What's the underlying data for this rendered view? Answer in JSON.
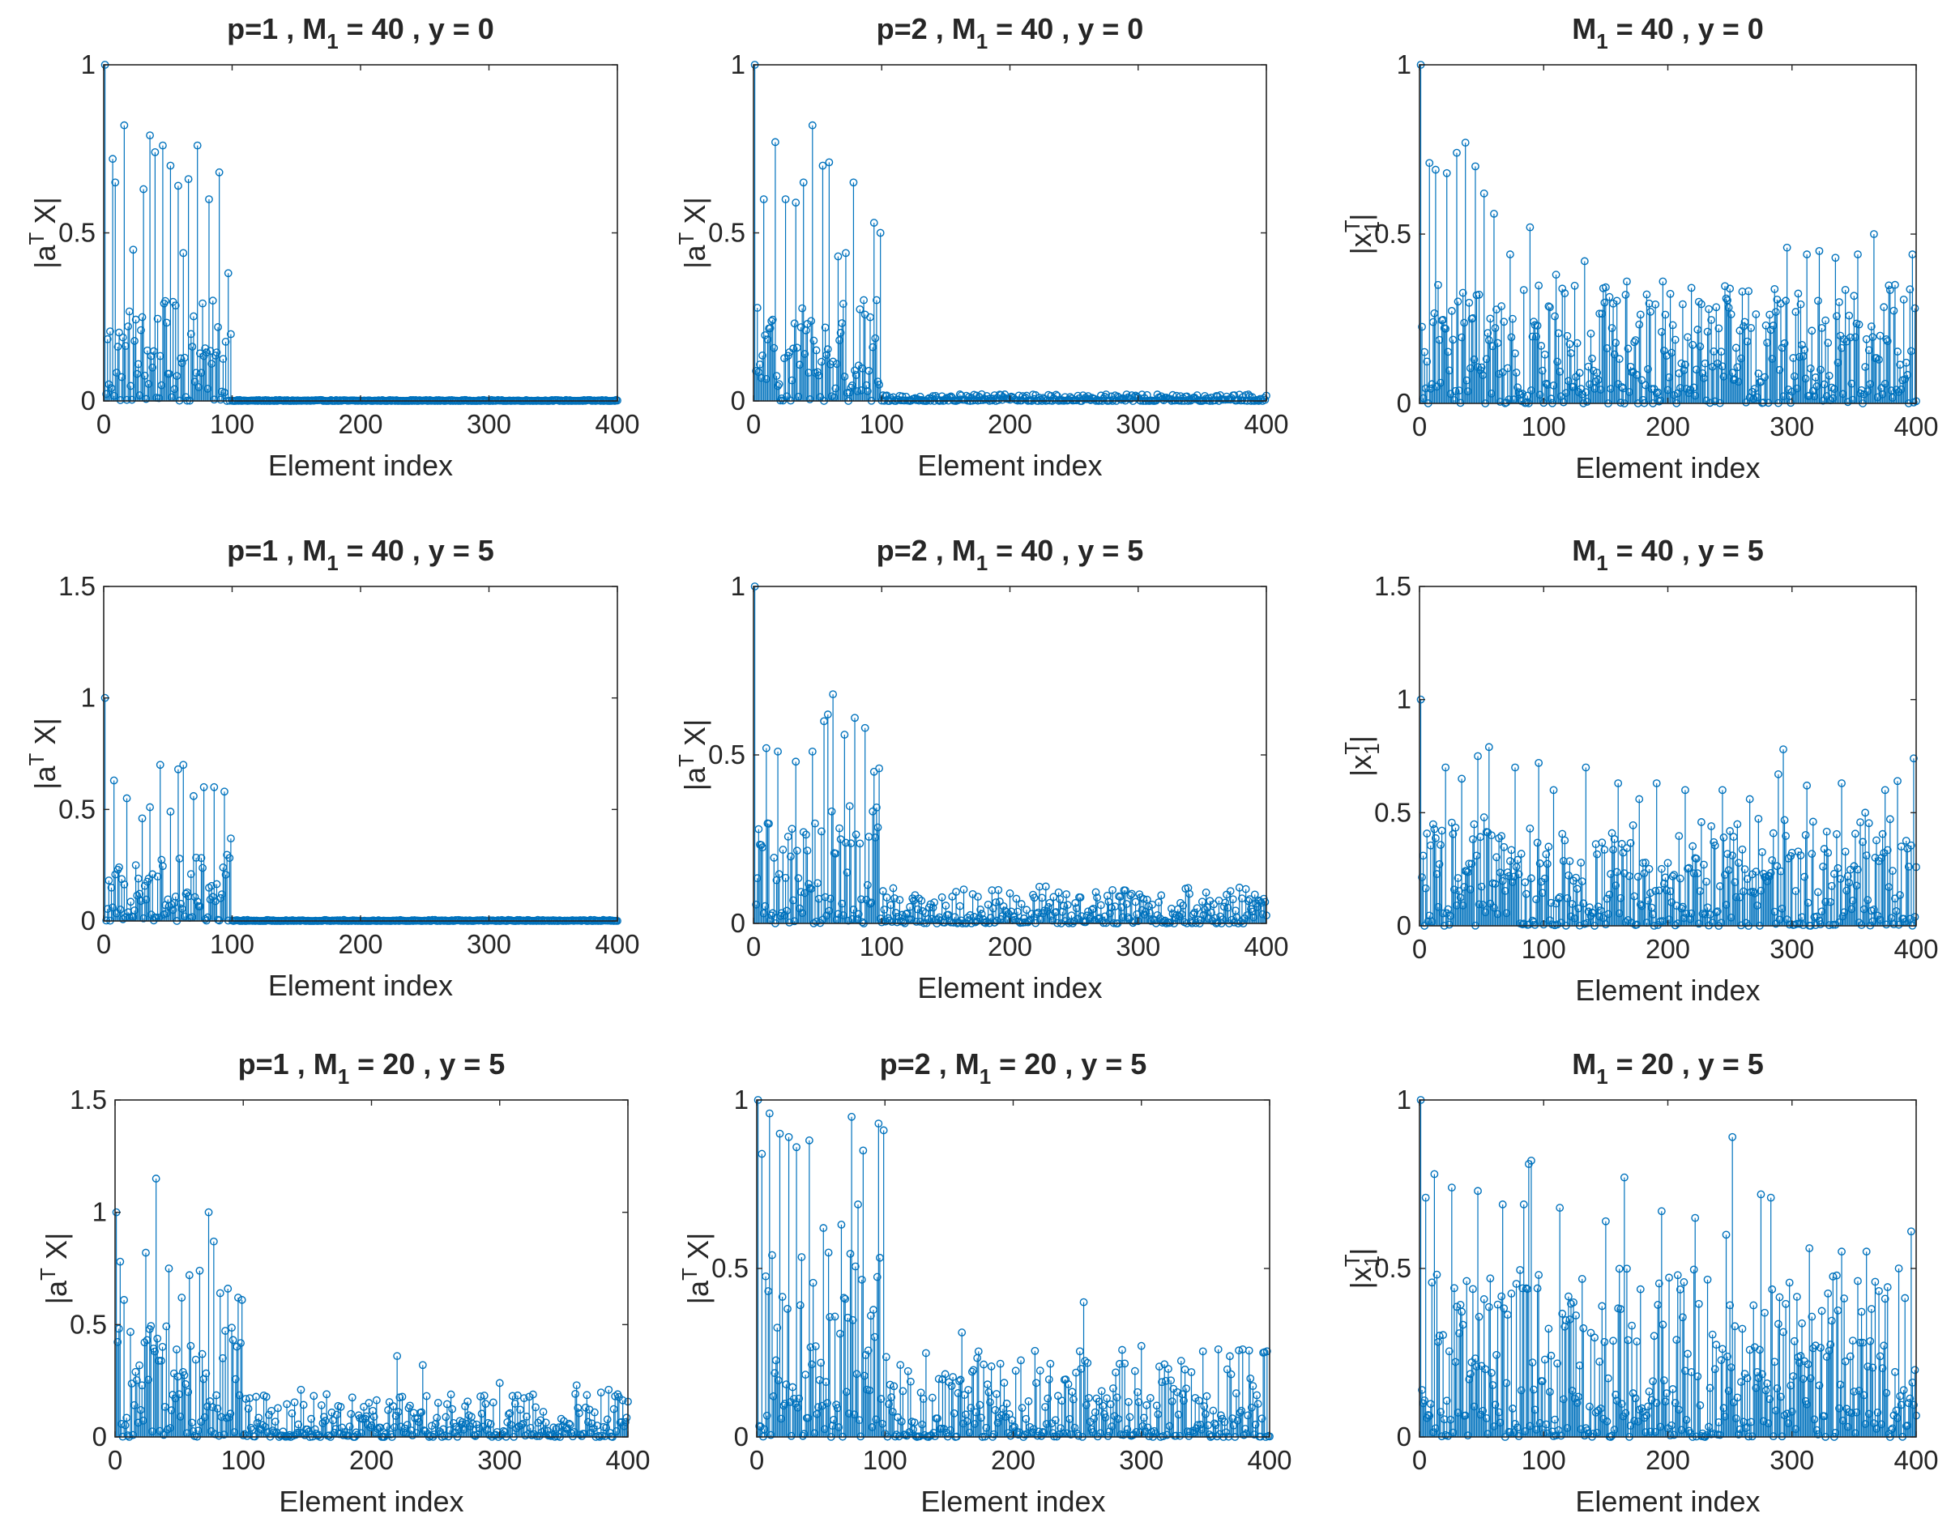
{
  "figure": {
    "xlabel": "Element index",
    "stem_color": "#0072BD",
    "axis_color": "#262626"
  },
  "chart_data": [
    {
      "type": "stem",
      "title": {
        "prefix": "p=1 , M",
        "sub": "1",
        "suffix": " = 40 , y = 0"
      },
      "xlabel": "Element index",
      "ylabel": {
        "pre": "|a",
        "sup": "T",
        "sub": "",
        "post": " X|"
      },
      "xlim": [
        0,
        400
      ],
      "ylim": [
        0,
        1
      ],
      "xticks": [
        "0",
        "100",
        "200",
        "300",
        "400"
      ],
      "yticks": [
        0,
        0.5,
        1
      ],
      "yticklabels": [
        "0",
        "0.5",
        "1"
      ],
      "series": {
        "n": 400,
        "signal_length": 100,
        "peaks": [
          [
            1,
            1.0
          ],
          [
            7,
            0.72
          ],
          [
            9,
            0.65
          ],
          [
            16,
            0.82
          ],
          [
            23,
            0.45
          ],
          [
            31,
            0.63
          ],
          [
            36,
            0.79
          ],
          [
            40,
            0.74
          ],
          [
            46,
            0.76
          ],
          [
            52,
            0.7
          ],
          [
            58,
            0.64
          ],
          [
            62,
            0.44
          ],
          [
            66,
            0.66
          ],
          [
            73,
            0.76
          ],
          [
            77,
            0.29
          ],
          [
            82,
            0.6
          ],
          [
            90,
            0.68
          ],
          [
            97,
            0.38
          ]
        ],
        "inside_max": 0.3,
        "outside_max": 0.003
      }
    },
    {
      "type": "stem",
      "title": {
        "prefix": "p=2 , M",
        "sub": "1",
        "suffix": " = 40 , y = 0"
      },
      "xlabel": "Element index",
      "ylabel": {
        "pre": "|a",
        "sup": "T",
        "sub": "",
        "post": " X|"
      },
      "xlim": [
        0,
        400
      ],
      "ylim": [
        0,
        1
      ],
      "xticks": [
        "0",
        "100",
        "200",
        "300",
        "400"
      ],
      "yticks": [
        0,
        0.5,
        1
      ],
      "yticklabels": [
        "0",
        "0.5",
        "1"
      ],
      "series": {
        "n": 400,
        "signal_length": 100,
        "peaks": [
          [
            1,
            1.0
          ],
          [
            8,
            0.6
          ],
          [
            17,
            0.77
          ],
          [
            25,
            0.6
          ],
          [
            33,
            0.59
          ],
          [
            39,
            0.65
          ],
          [
            46,
            0.82
          ],
          [
            54,
            0.7
          ],
          [
            59,
            0.71
          ],
          [
            66,
            0.43
          ],
          [
            72,
            0.44
          ],
          [
            78,
            0.65
          ],
          [
            86,
            0.3
          ],
          [
            94,
            0.53
          ],
          [
            99,
            0.5
          ]
        ],
        "inside_max": 0.3,
        "outside_max": 0.02
      }
    },
    {
      "type": "stem",
      "title": {
        "prefix": "M",
        "sub": "1",
        "suffix": " = 40 , y = 0"
      },
      "xlabel": "Element index",
      "ylabel": {
        "pre": "|x",
        "sup": "T",
        "sub": "1",
        "post": "|"
      },
      "xlim": [
        0,
        400
      ],
      "ylim": [
        0,
        1
      ],
      "xticks": [
        "0",
        "100",
        "200",
        "300",
        "400"
      ],
      "yticks": [
        0,
        0.5,
        1
      ],
      "yticklabels": [
        "0",
        "0.5",
        "1"
      ],
      "series": {
        "n": 400,
        "signal_length": 400,
        "peaks": [
          [
            1,
            1.0
          ],
          [
            8,
            0.71
          ],
          [
            13,
            0.69
          ],
          [
            22,
            0.68
          ],
          [
            30,
            0.74
          ],
          [
            37,
            0.77
          ],
          [
            45,
            0.7
          ],
          [
            52,
            0.62
          ],
          [
            60,
            0.56
          ],
          [
            73,
            0.44
          ],
          [
            89,
            0.52
          ],
          [
            110,
            0.38
          ],
          [
            133,
            0.42
          ],
          [
            148,
            0.34
          ],
          [
            167,
            0.36
          ],
          [
            196,
            0.36
          ],
          [
            225,
            0.3
          ],
          [
            260,
            0.33
          ],
          [
            296,
            0.46
          ],
          [
            312,
            0.44
          ],
          [
            322,
            0.45
          ],
          [
            335,
            0.43
          ],
          [
            353,
            0.44
          ],
          [
            366,
            0.5
          ],
          [
            383,
            0.35
          ],
          [
            397,
            0.44
          ]
        ],
        "inside_max": 0.35,
        "outside_max": 0
      }
    },
    {
      "type": "stem",
      "title": {
        "prefix": "p=1 , M",
        "sub": "1",
        "suffix": " = 40 , y = 5"
      },
      "xlabel": "Element index",
      "ylabel": {
        "pre": "|a",
        "sup": "T",
        "sub": "",
        "post": " X|"
      },
      "xlim": [
        0,
        400
      ],
      "ylim": [
        0,
        1.5
      ],
      "xticks": [
        "0",
        "100",
        "200",
        "300",
        "400"
      ],
      "yticks": [
        0,
        0.5,
        1,
        1.5
      ],
      "yticklabels": [
        "0",
        "0.5",
        "1",
        "1.5"
      ],
      "series": {
        "n": 400,
        "signal_length": 100,
        "peaks": [
          [
            1,
            1.0
          ],
          [
            8,
            0.63
          ],
          [
            18,
            0.55
          ],
          [
            30,
            0.46
          ],
          [
            36,
            0.51
          ],
          [
            44,
            0.7
          ],
          [
            52,
            0.49
          ],
          [
            58,
            0.68
          ],
          [
            62,
            0.7
          ],
          [
            70,
            0.56
          ],
          [
            78,
            0.6
          ],
          [
            86,
            0.6
          ],
          [
            94,
            0.58
          ],
          [
            99,
            0.37
          ]
        ],
        "inside_max": 0.3,
        "outside_max": 0.005
      }
    },
    {
      "type": "stem",
      "title": {
        "prefix": "p=2 , M",
        "sub": "1",
        "suffix": " = 40 , y = 5"
      },
      "xlabel": "Element index",
      "ylabel": {
        "pre": "|a",
        "sup": "T",
        "sub": "",
        "post": " X|"
      },
      "xlim": [
        0,
        400
      ],
      "ylim": [
        0,
        1
      ],
      "xticks": [
        "0",
        "100",
        "200",
        "300",
        "400"
      ],
      "yticks": [
        0,
        0.5,
        1
      ],
      "yticklabels": [
        "0",
        "0.5",
        "1"
      ],
      "series": {
        "n": 400,
        "signal_length": 100,
        "peaks": [
          [
            1,
            1.0
          ],
          [
            10,
            0.52
          ],
          [
            19,
            0.51
          ],
          [
            33,
            0.48
          ],
          [
            46,
            0.51
          ],
          [
            55,
            0.6
          ],
          [
            58,
            0.62
          ],
          [
            62,
            0.68
          ],
          [
            71,
            0.56
          ],
          [
            79,
            0.61
          ],
          [
            87,
            0.58
          ],
          [
            94,
            0.45
          ],
          [
            98,
            0.46
          ]
        ],
        "inside_max": 0.35,
        "outside_max": 0.11
      }
    },
    {
      "type": "stem",
      "title": {
        "prefix": "M",
        "sub": "1",
        "suffix": " = 40 , y = 5"
      },
      "xlabel": "Element index",
      "ylabel": {
        "pre": "|x",
        "sup": "T",
        "sub": "1",
        "post": "|"
      },
      "xlim": [
        0,
        400
      ],
      "ylim": [
        0,
        1.5
      ],
      "xticks": [
        "0",
        "100",
        "200",
        "300",
        "400"
      ],
      "yticks": [
        0,
        0.5,
        1,
        1.5
      ],
      "yticklabels": [
        "0",
        "0.5",
        "1",
        "1.5"
      ],
      "series": {
        "n": 400,
        "signal_length": 400,
        "peaks": [
          [
            1,
            1.0
          ],
          [
            21,
            0.7
          ],
          [
            34,
            0.65
          ],
          [
            47,
            0.75
          ],
          [
            56,
            0.79
          ],
          [
            77,
            0.7
          ],
          [
            96,
            0.72
          ],
          [
            108,
            0.6
          ],
          [
            134,
            0.7
          ],
          [
            160,
            0.63
          ],
          [
            177,
            0.56
          ],
          [
            191,
            0.63
          ],
          [
            214,
            0.6
          ],
          [
            244,
            0.6
          ],
          [
            266,
            0.56
          ],
          [
            289,
            0.67
          ],
          [
            293,
            0.78
          ],
          [
            312,
            0.62
          ],
          [
            340,
            0.63
          ],
          [
            359,
            0.5
          ],
          [
            375,
            0.6
          ],
          [
            385,
            0.64
          ],
          [
            398,
            0.74
          ]
        ],
        "inside_max": 0.48,
        "outside_max": 0
      }
    },
    {
      "type": "stem",
      "title": {
        "prefix": "p=1 , M",
        "sub": "1",
        "suffix": " = 20 , y = 5"
      },
      "xlabel": "Element index",
      "ylabel": {
        "pre": "|a",
        "sup": "T",
        "sub": "",
        "post": " X|"
      },
      "xlim": [
        0,
        400
      ],
      "ylim": [
        0,
        1.5
      ],
      "xticks": [
        "0",
        "100",
        "200",
        "300",
        "400"
      ],
      "yticks": [
        0,
        0.5,
        1,
        1.5
      ],
      "yticklabels": [
        "0",
        "0.5",
        "1",
        "1.5"
      ],
      "series": {
        "n": 400,
        "signal_length": 100,
        "peaks": [
          [
            1,
            1.0
          ],
          [
            4,
            0.78
          ],
          [
            7,
            0.61
          ],
          [
            24,
            0.82
          ],
          [
            32,
            1.15
          ],
          [
            42,
            0.75
          ],
          [
            52,
            0.62
          ],
          [
            58,
            0.72
          ],
          [
            66,
            0.74
          ],
          [
            73,
            1.0
          ],
          [
            77,
            0.87
          ],
          [
            82,
            0.64
          ],
          [
            88,
            0.66
          ],
          [
            96,
            0.62
          ],
          [
            99,
            0.61
          ],
          [
            145,
            0.21
          ],
          [
            165,
            0.19
          ],
          [
            220,
            0.36
          ],
          [
            240,
            0.32
          ],
          [
            300,
            0.24
          ],
          [
            360,
            0.23
          ],
          [
            385,
            0.21
          ]
        ],
        "inside_max": 0.5,
        "outside_max": 0.2
      }
    },
    {
      "type": "stem",
      "title": {
        "prefix": "p=2 , M",
        "sub": "1",
        "suffix": " = 20 , y = 5"
      },
      "xlabel": "Element index",
      "ylabel": {
        "pre": "|a",
        "sup": "T",
        "sub": "",
        "post": " X|"
      },
      "xlim": [
        0,
        400
      ],
      "ylim": [
        0,
        1
      ],
      "xticks": [
        "0",
        "100",
        "200",
        "300",
        "400"
      ],
      "yticks": [
        0,
        0.5,
        1
      ],
      "yticklabels": [
        "0",
        "0.5",
        "1"
      ],
      "series": {
        "n": 400,
        "signal_length": 100,
        "peaks": [
          [
            1,
            1.0
          ],
          [
            4,
            0.84
          ],
          [
            10,
            0.96
          ],
          [
            18,
            0.9
          ],
          [
            25,
            0.89
          ],
          [
            31,
            0.86
          ],
          [
            41,
            0.88
          ],
          [
            52,
            0.62
          ],
          [
            66,
            0.63
          ],
          [
            74,
            0.95
          ],
          [
            79,
            0.69
          ],
          [
            83,
            0.85
          ],
          [
            95,
            0.93
          ],
          [
            99,
            0.91
          ],
          [
            160,
            0.31
          ],
          [
            255,
            0.4
          ],
          [
            300,
            0.27
          ],
          [
            360,
            0.26
          ],
          [
            395,
            0.25
          ]
        ],
        "inside_max": 0.55,
        "outside_max": 0.26
      }
    },
    {
      "type": "stem",
      "title": {
        "prefix": "M",
        "sub": "1",
        "suffix": " = 20 , y = 5"
      },
      "xlabel": "Element index",
      "ylabel": {
        "pre": "|x",
        "sup": "T",
        "sub": "1",
        "post": "|"
      },
      "xlim": [
        0,
        400
      ],
      "ylim": [
        0,
        1
      ],
      "xticks": [
        "0",
        "100",
        "200",
        "300",
        "400"
      ],
      "yticks": [
        0,
        0.5,
        1
      ],
      "yticklabels": [
        "0",
        "0.5",
        "1"
      ],
      "series": {
        "n": 400,
        "signal_length": 400,
        "peaks": [
          [
            1,
            1.0
          ],
          [
            5,
            0.71
          ],
          [
            12,
            0.78
          ],
          [
            26,
            0.74
          ],
          [
            47,
            0.73
          ],
          [
            67,
            0.69
          ],
          [
            84,
            0.69
          ],
          [
            88,
            0.81
          ],
          [
            90,
            0.82
          ],
          [
            113,
            0.68
          ],
          [
            150,
            0.64
          ],
          [
            165,
            0.77
          ],
          [
            195,
            0.67
          ],
          [
            222,
            0.65
          ],
          [
            247,
            0.6
          ],
          [
            252,
            0.89
          ],
          [
            275,
            0.72
          ],
          [
            283,
            0.71
          ],
          [
            314,
            0.56
          ],
          [
            340,
            0.55
          ],
          [
            360,
            0.55
          ],
          [
            386,
            0.5
          ],
          [
            396,
            0.61
          ]
        ],
        "inside_max": 0.5,
        "outside_max": 0
      }
    }
  ]
}
